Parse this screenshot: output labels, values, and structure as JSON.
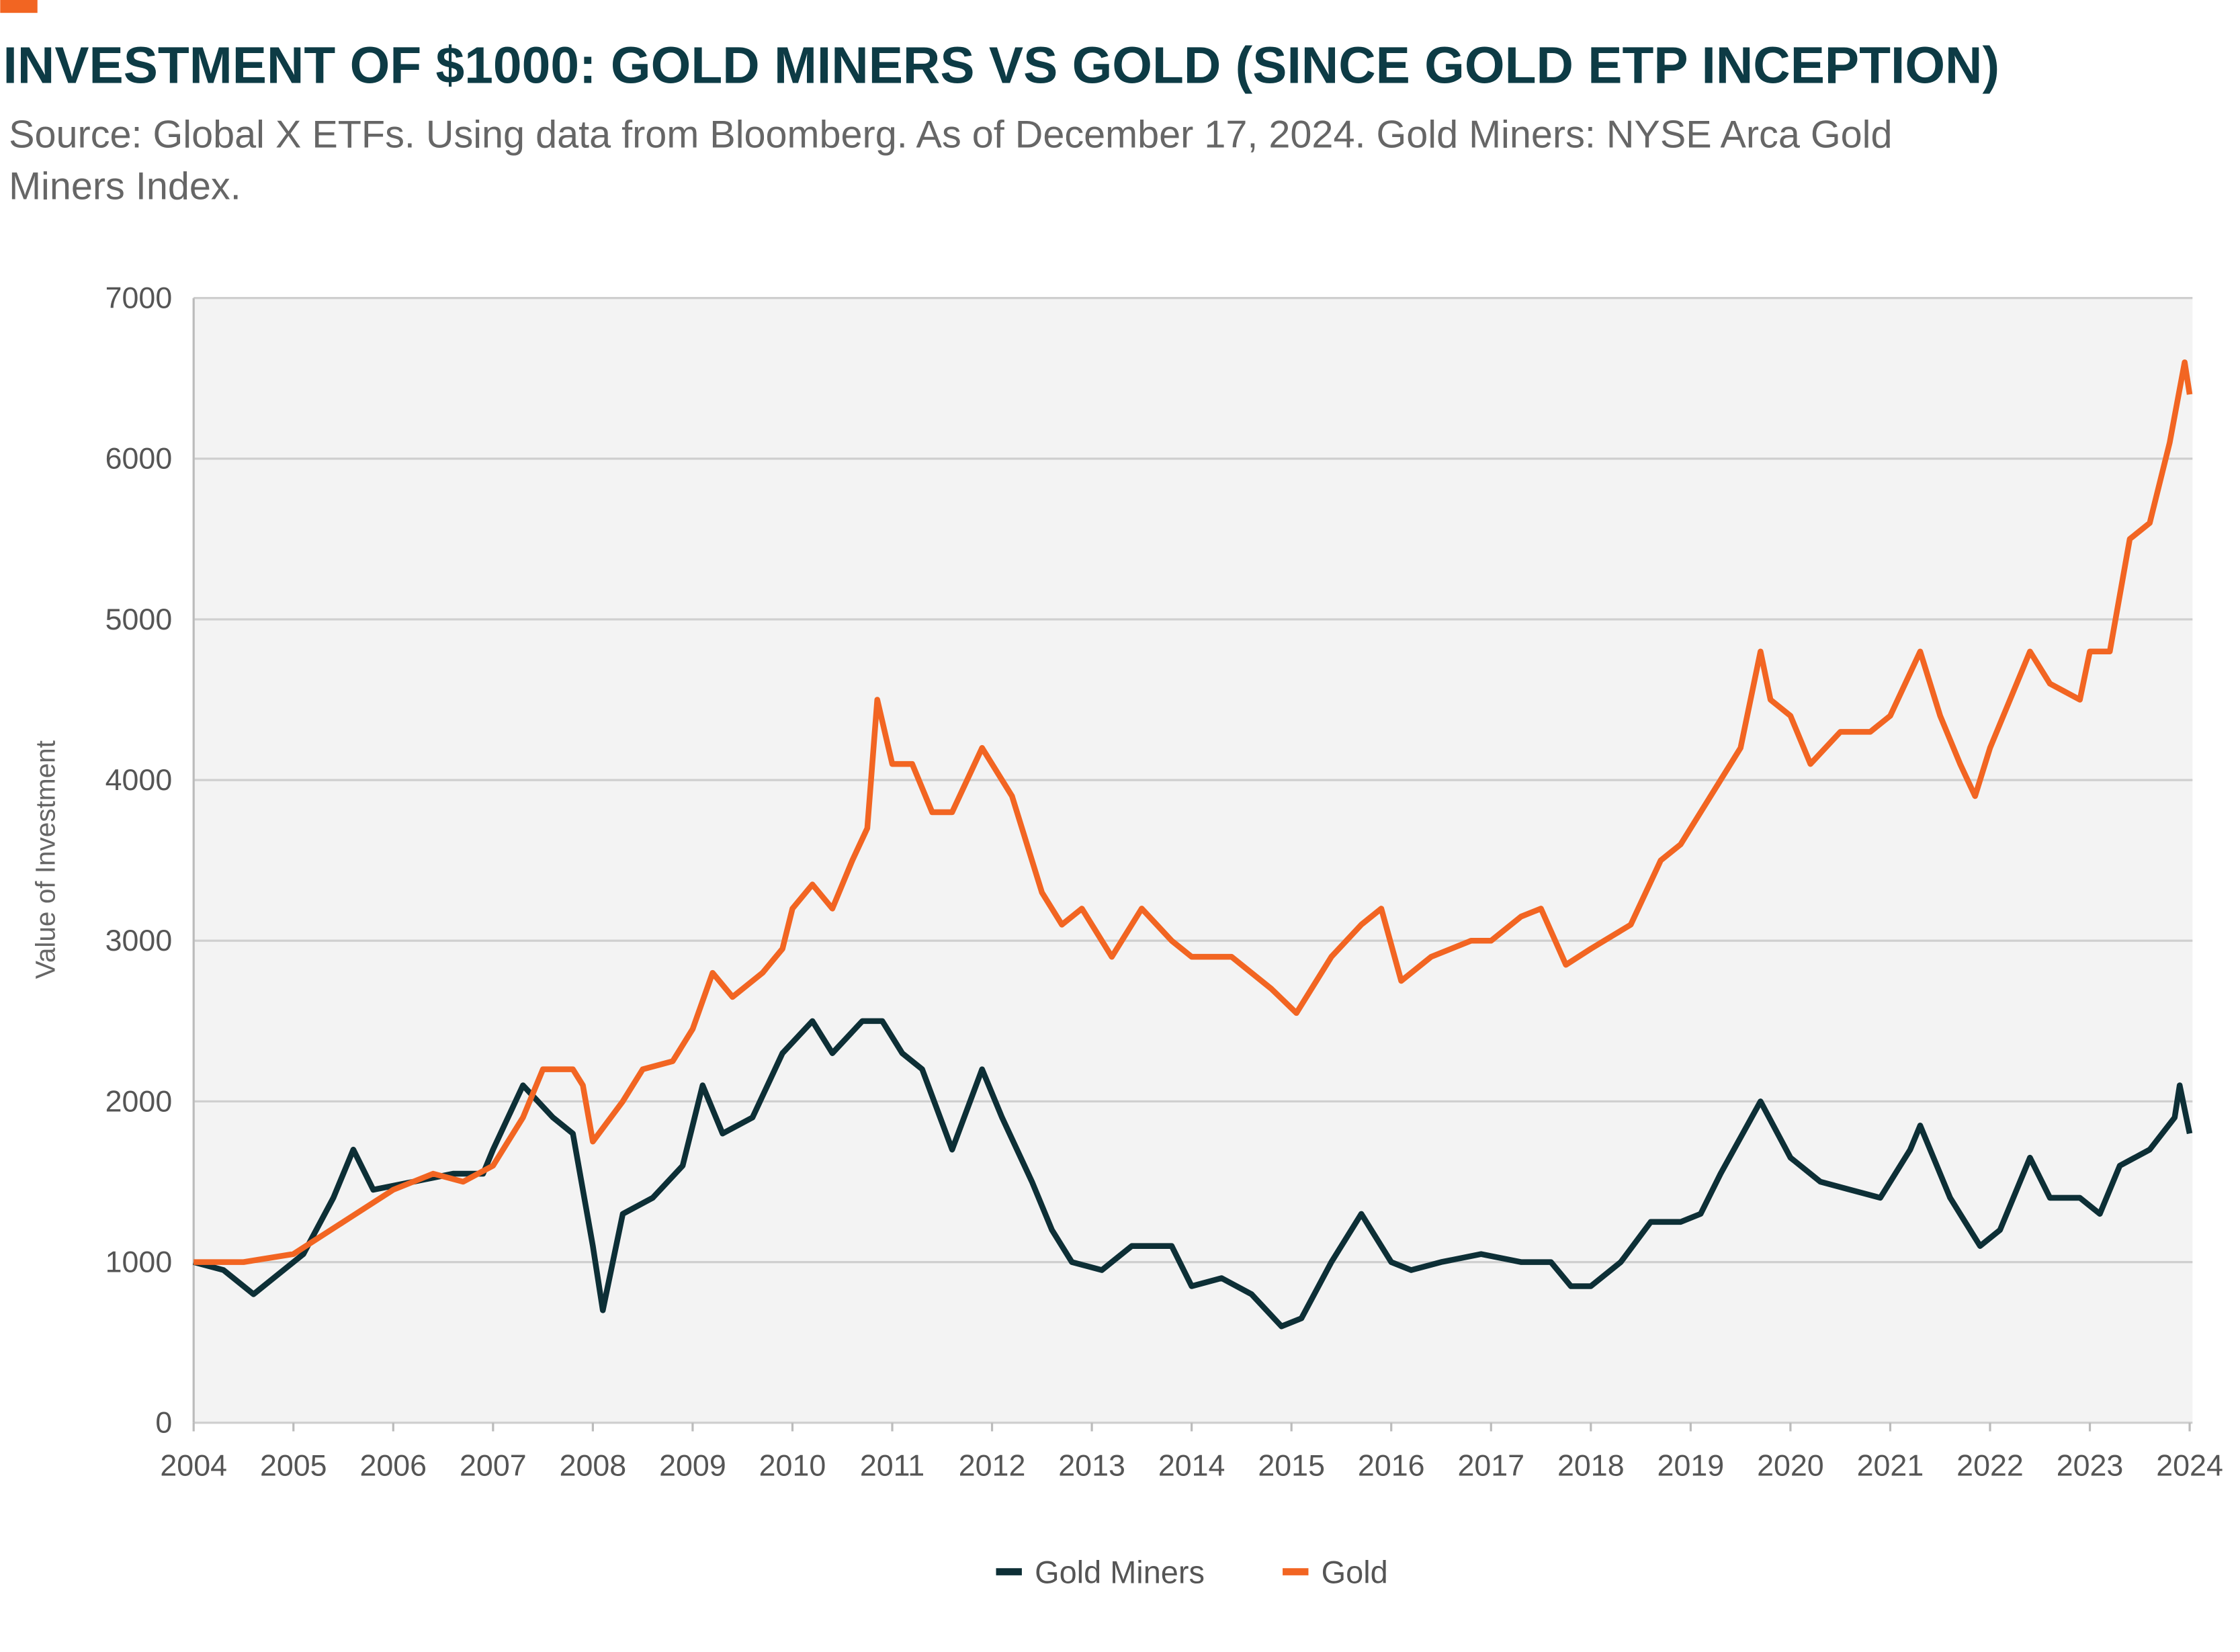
{
  "chart_data": {
    "type": "line",
    "title": "INVESTMENT OF $1000: GOLD MINERS VS GOLD (SINCE GOLD ETP INCEPTION)",
    "subtitle": [
      "Source: Global X ETFs. Using data from Bloomberg. As of December 17, 2024. Gold Miners: NYSE Arca Gold",
      "Miners Index."
    ],
    "y_label": "Value of Investment",
    "xlim": [
      2004,
      2024
    ],
    "xticks": [
      2004,
      2005,
      2006,
      2007,
      2008,
      2009,
      2010,
      2011,
      2012,
      2013,
      2014,
      2015,
      2016,
      2017,
      2018,
      2019,
      2020,
      2021,
      2022,
      2023,
      2024
    ],
    "ylim": [
      0,
      7000
    ],
    "yticks": [
      0,
      1000,
      2000,
      3000,
      4000,
      5000,
      6000,
      7000
    ],
    "grid": true,
    "legend": "bottom",
    "series": [
      {
        "name": "Gold Miners",
        "color": "#0d2f36",
        "x": [
          2004.0,
          2004.3,
          2004.6,
          2004.9,
          2005.1,
          2005.4,
          2005.6,
          2005.8,
          2006.2,
          2006.6,
          2006.9,
          2007.0,
          2007.3,
          2007.6,
          2007.8,
          2008.0,
          2008.1,
          2008.3,
          2008.6,
          2008.9,
          2009.1,
          2009.3,
          2009.6,
          2009.9,
          2010.2,
          2010.4,
          2010.7,
          2010.9,
          2011.1,
          2011.3,
          2011.6,
          2011.9,
          2012.1,
          2012.4,
          2012.6,
          2012.8,
          2013.1,
          2013.4,
          2013.8,
          2014.0,
          2014.3,
          2014.6,
          2014.9,
          2015.1,
          2015.4,
          2015.7,
          2016.0,
          2016.2,
          2016.5,
          2016.9,
          2017.3,
          2017.6,
          2017.8,
          2018.0,
          2018.3,
          2018.6,
          2018.9,
          2019.1,
          2019.3,
          2019.7,
          2020.0,
          2020.3,
          2020.6,
          2020.9,
          2021.2,
          2021.3,
          2021.6,
          2021.9,
          2022.1,
          2022.4,
          2022.6,
          2022.9,
          2023.1,
          2023.3,
          2023.6,
          2023.85,
          2023.9,
          2024.0
        ],
        "values": [
          1000,
          950,
          800,
          950,
          1050,
          1400,
          1700,
          1450,
          1500,
          1550,
          1550,
          1700,
          2100,
          1900,
          1800,
          1100,
          700,
          1300,
          1400,
          1600,
          2100,
          1800,
          1900,
          2300,
          2500,
          2300,
          2500,
          2500,
          2300,
          2200,
          1700,
          2200,
          1900,
          1500,
          1200,
          1000,
          950,
          1100,
          1100,
          850,
          900,
          800,
          600,
          650,
          1000,
          1300,
          1000,
          950,
          1000,
          1050,
          1000,
          1000,
          850,
          850,
          1000,
          1250,
          1250,
          1300,
          1550,
          2000,
          1650,
          1500,
          1450,
          1400,
          1700,
          1850,
          1400,
          1100,
          1200,
          1650,
          1400,
          1400,
          1300,
          1600,
          1700,
          1900,
          2100,
          1800
        ]
      },
      {
        "name": "Gold",
        "color": "#f26522",
        "x": [
          2004.0,
          2004.5,
          2005.0,
          2005.5,
          2006.0,
          2006.4,
          2006.7,
          2007.0,
          2007.3,
          2007.5,
          2007.8,
          2007.9,
          2008.0,
          2008.3,
          2008.5,
          2008.8,
          2009.0,
          2009.2,
          2009.4,
          2009.7,
          2009.9,
          2010.0,
          2010.2,
          2010.4,
          2010.6,
          2010.75,
          2010.85,
          2011.0,
          2011.2,
          2011.4,
          2011.6,
          2011.9,
          2012.2,
          2012.5,
          2012.7,
          2012.9,
          2013.2,
          2013.5,
          2013.8,
          2014.0,
          2014.4,
          2014.8,
          2015.05,
          2015.4,
          2015.7,
          2015.9,
          2016.1,
          2016.4,
          2016.8,
          2017.0,
          2017.3,
          2017.5,
          2017.75,
          2018.0,
          2018.4,
          2018.7,
          2018.9,
          2019.3,
          2019.5,
          2019.7,
          2019.8,
          2020.0,
          2020.2,
          2020.5,
          2020.8,
          2021.0,
          2021.3,
          2021.5,
          2021.7,
          2021.85,
          2022.0,
          2022.2,
          2022.4,
          2022.6,
          2022.9,
          2023.0,
          2023.2,
          2023.4,
          2023.6,
          2023.8,
          2023.95,
          2024.0
        ],
        "values": [
          1000,
          1000,
          1050,
          1250,
          1450,
          1550,
          1500,
          1600,
          1900,
          2200,
          2200,
          2100,
          1750,
          2000,
          2200,
          2250,
          2450,
          2800,
          2650,
          2800,
          2950,
          3200,
          3350,
          3200,
          3500,
          3700,
          4500,
          4100,
          4100,
          3800,
          3800,
          4200,
          3900,
          3300,
          3100,
          3200,
          2900,
          3200,
          3000,
          2900,
          2900,
          2700,
          2550,
          2900,
          3100,
          3200,
          2750,
          2900,
          3000,
          3000,
          3150,
          3200,
          2850,
          2950,
          3100,
          3500,
          3600,
          4000,
          4200,
          4800,
          4500,
          4400,
          4100,
          4300,
          4300,
          4400,
          4800,
          4400,
          4100,
          3900,
          4200,
          4500,
          4800,
          4600,
          4500,
          4800,
          4800,
          5500,
          5600,
          6100,
          6600,
          6400
        ]
      }
    ]
  }
}
